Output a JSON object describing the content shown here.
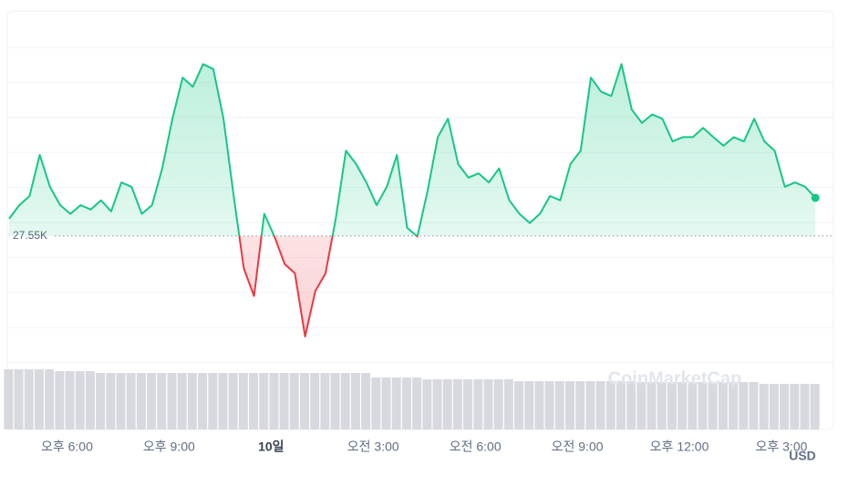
{
  "chart_data": {
    "type": "line",
    "x": [
      16.3,
      16.6,
      16.9,
      17.2,
      17.5,
      17.8,
      18.1,
      18.4,
      18.7,
      19,
      19.3,
      19.6,
      19.9,
      20.2,
      20.5,
      20.8,
      21.1,
      21.4,
      21.7,
      22,
      22.3,
      22.6,
      22.9,
      23.2,
      23.5,
      23.8,
      24.1,
      24.4,
      24.7,
      25,
      25.3,
      25.6,
      25.9,
      26.2,
      26.5,
      26.8,
      27.1,
      27.4,
      27.7,
      28,
      28.3,
      28.6,
      28.9,
      29.2,
      29.5,
      29.8,
      30.1,
      30.4,
      30.7,
      31,
      31.3,
      31.6,
      31.9,
      32.2,
      32.5,
      32.8,
      33.1,
      33.4,
      33.7,
      34,
      34.3,
      34.6,
      34.9,
      35.2,
      35.5,
      35.8,
      36.1,
      36.4,
      36.7,
      37,
      37.3,
      37.6,
      37.9,
      38.2,
      38.5,
      38.8,
      39.1,
      39.4,
      39.7,
      40
    ],
    "values": [
      27578,
      27600,
      27615,
      27682,
      27630,
      27600,
      27586,
      27600,
      27593,
      27608,
      27590,
      27637,
      27630,
      27586,
      27600,
      27660,
      27741,
      27808,
      27793,
      27830,
      27822,
      27741,
      27615,
      27497,
      27452,
      27586,
      27549,
      27504,
      27489,
      27386,
      27460,
      27489,
      27578,
      27689,
      27667,
      27637,
      27600,
      27630,
      27682,
      27563,
      27549,
      27623,
      27711,
      27741,
      27667,
      27645,
      27652,
      27637,
      27660,
      27608,
      27586,
      27571,
      27586,
      27615,
      27608,
      27667,
      27689,
      27808,
      27785,
      27778,
      27830,
      27756,
      27734,
      27748,
      27741,
      27704,
      27711,
      27711,
      27726,
      27711,
      27697,
      27711,
      27704,
      27741,
      27704,
      27689,
      27630,
      27637,
      27630,
      27612
    ],
    "xlim": [
      16.3,
      40.1
    ],
    "ylim": [
      27340,
      27875
    ],
    "xticks": [
      {
        "value": 18,
        "label": "오후 6:00"
      },
      {
        "value": 21,
        "label": "오후 9:00"
      },
      {
        "value": 24,
        "label": "10일"
      },
      {
        "value": 27,
        "label": "오전 3:00"
      },
      {
        "value": 30,
        "label": "오전 6:00"
      },
      {
        "value": 33,
        "label": "오전 9:00"
      },
      {
        "value": 36,
        "label": "오후 12:00"
      },
      {
        "value": 39,
        "label": "오후 3:00"
      }
    ],
    "reference": {
      "value": 27550,
      "label": "27.55K"
    },
    "color_up": "#16c784",
    "color_down": "#ea3943",
    "volume": {
      "values": [
        66,
        66,
        66,
        66,
        66,
        64,
        64,
        64,
        64,
        62,
        62,
        62,
        62,
        62,
        62,
        62,
        62,
        62,
        62,
        62,
        62,
        62,
        62,
        62,
        62,
        62,
        62,
        62,
        62,
        62,
        62,
        62,
        62,
        62,
        62,
        62,
        57,
        57,
        57,
        57,
        57,
        55,
        55,
        55,
        55,
        55,
        55,
        55,
        55,
        55,
        53,
        53,
        53,
        53,
        53,
        53,
        53,
        53,
        53,
        53,
        53,
        53,
        52,
        52,
        52,
        52,
        52,
        52,
        52,
        52,
        52,
        52,
        52,
        52,
        50,
        50,
        50,
        50,
        50,
        50
      ],
      "ylim": [
        0,
        70
      ],
      "color": "#d7d9de"
    },
    "currency": "USD",
    "watermark": "CoinMarketCap"
  }
}
